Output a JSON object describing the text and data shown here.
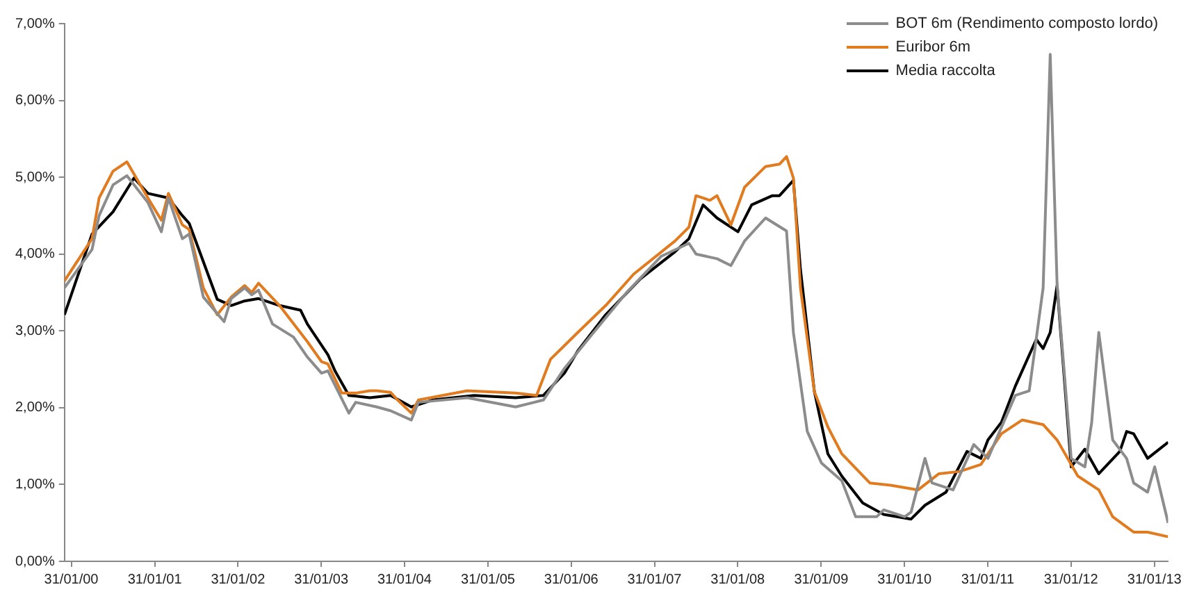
{
  "chart_data": {
    "type": "line",
    "legend": "top right",
    "grid": false,
    "marker": "none",
    "line_style": "solid",
    "xlim": [
      "2000-01",
      "2013-04"
    ],
    "xticks": [
      {
        "value": "2000-01-31",
        "label": "31/01/00"
      },
      {
        "value": "2001-01-31",
        "label": "31/01/01"
      },
      {
        "value": "2002-01-31",
        "label": "31/01/02"
      },
      {
        "value": "2003-01-31",
        "label": "31/01/03"
      },
      {
        "value": "2004-01-31",
        "label": "31/01/04"
      },
      {
        "value": "2005-01-31",
        "label": "31/01/05"
      },
      {
        "value": "2006-01-31",
        "label": "31/01/06"
      },
      {
        "value": "2007-01-31",
        "label": "31/01/07"
      },
      {
        "value": "2008-01-31",
        "label": "31/01/08"
      },
      {
        "value": "2009-01-31",
        "label": "31/01/09"
      },
      {
        "value": "2010-01-31",
        "label": "31/01/10"
      },
      {
        "value": "2011-01-31",
        "label": "31/01/11"
      },
      {
        "value": "2012-01-31",
        "label": "31/01/12"
      },
      {
        "value": "2013-01-31",
        "label": "31/01/13"
      }
    ],
    "ylim": [
      0,
      7
    ],
    "yticks": [
      {
        "value": 0,
        "label": "0,00%"
      },
      {
        "value": 1,
        "label": "1,00%"
      },
      {
        "value": 2,
        "label": "2,00%"
      },
      {
        "value": 3,
        "label": "3,00%"
      },
      {
        "value": 4,
        "label": "4,00%"
      },
      {
        "value": 5,
        "label": "5,00%"
      },
      {
        "value": 6,
        "label": "6,00%"
      },
      {
        "value": 7,
        "label": "7,00%"
      }
    ],
    "series": [
      {
        "name": "BOT 6m (Rendimento composto lordo)",
        "color": "#8c8c8c",
        "x": [
          "2000-01",
          "2000-05",
          "2000-06",
          "2000-08",
          "2000-10",
          "2001-01",
          "2001-03",
          "2001-04",
          "2001-06",
          "2001-07",
          "2001-09",
          "2001-12",
          "2002-01",
          "2002-03",
          "2002-04",
          "2002-05",
          "2002-07",
          "2002-10",
          "2002-12",
          "2003-02",
          "2003-03",
          "2003-06",
          "2003-07",
          "2003-10",
          "2003-12",
          "2004-03",
          "2004-04",
          "2004-11",
          "2005-06",
          "2005-10",
          "2006-01",
          "2006-05",
          "2006-10",
          "2007-03",
          "2007-07",
          "2007-08",
          "2007-11",
          "2008-01",
          "2008-03",
          "2008-06",
          "2008-09",
          "2008-10",
          "2008-12",
          "2009-02",
          "2009-05",
          "2009-07",
          "2009-10",
          "2009-11",
          "2010-02",
          "2010-03",
          "2010-05",
          "2010-06",
          "2010-09",
          "2010-12",
          "2011-02",
          "2011-06",
          "2011-08",
          "2011-10",
          "2011-11",
          "2011-12",
          "2012-02",
          "2012-04",
          "2012-05",
          "2012-06",
          "2012-08",
          "2012-10",
          "2012-11",
          "2013-01",
          "2013-02",
          "2013-04"
        ],
        "values": [
          3.56,
          4.06,
          4.5,
          4.9,
          5.02,
          4.67,
          4.29,
          4.73,
          4.2,
          4.26,
          3.44,
          3.12,
          3.42,
          3.56,
          3.47,
          3.53,
          3.09,
          2.92,
          2.66,
          2.45,
          2.48,
          1.93,
          2.07,
          2.01,
          1.96,
          1.84,
          2.07,
          2.13,
          2.01,
          2.1,
          2.51,
          2.95,
          3.5,
          3.97,
          4.14,
          4.0,
          3.94,
          3.85,
          4.17,
          4.47,
          4.3,
          2.98,
          1.69,
          1.28,
          1.05,
          0.58,
          0.58,
          0.67,
          0.58,
          0.64,
          1.34,
          1.02,
          0.93,
          1.52,
          1.34,
          2.16,
          2.22,
          3.56,
          6.6,
          3.62,
          1.34,
          1.23,
          1.81,
          2.98,
          1.58,
          1.34,
          1.02,
          0.9,
          1.23,
          0.5
        ]
      },
      {
        "name": "Euribor 6m",
        "color": "#e07b20",
        "x": [
          "2000-01",
          "2000-05",
          "2000-06",
          "2000-08",
          "2000-10",
          "2001-01",
          "2001-03",
          "2001-04",
          "2001-06",
          "2001-07",
          "2001-09",
          "2001-11",
          "2002-01",
          "2002-03",
          "2002-04",
          "2002-05",
          "2002-08",
          "2002-12",
          "2003-02",
          "2003-03",
          "2003-05",
          "2003-07",
          "2003-09",
          "2003-10",
          "2003-12",
          "2004-01",
          "2004-03",
          "2004-04",
          "2004-11",
          "2005-06",
          "2005-09",
          "2005-11",
          "2006-03",
          "2006-07",
          "2006-11",
          "2007-05",
          "2007-07",
          "2007-08",
          "2007-10",
          "2007-11",
          "2008-01",
          "2008-03",
          "2008-06",
          "2008-08",
          "2008-09",
          "2008-10",
          "2008-11",
          "2009-01",
          "2009-03",
          "2009-05",
          "2009-09",
          "2009-12",
          "2010-04",
          "2010-07",
          "2010-10",
          "2011-01",
          "2011-04",
          "2011-07",
          "2011-10",
          "2011-12",
          "2012-03",
          "2012-06",
          "2012-08",
          "2012-11",
          "2013-01",
          "2013-04"
        ],
        "values": [
          3.65,
          4.2,
          4.73,
          5.08,
          5.2,
          4.73,
          4.44,
          4.79,
          4.38,
          4.32,
          3.56,
          3.21,
          3.44,
          3.59,
          3.5,
          3.62,
          3.33,
          2.86,
          2.6,
          2.57,
          2.19,
          2.19,
          2.22,
          2.22,
          2.2,
          2.1,
          1.93,
          2.1,
          2.22,
          2.19,
          2.16,
          2.63,
          2.98,
          3.33,
          3.74,
          4.17,
          4.35,
          4.76,
          4.7,
          4.76,
          4.38,
          4.87,
          5.14,
          5.17,
          5.27,
          4.99,
          3.56,
          2.21,
          1.75,
          1.4,
          1.02,
          0.99,
          0.93,
          1.14,
          1.17,
          1.26,
          1.66,
          1.84,
          1.78,
          1.58,
          1.11,
          0.93,
          0.58,
          0.38,
          0.38,
          0.32
        ]
      },
      {
        "name": "Media raccolta",
        "color": "#000000",
        "x": [
          "2000-01",
          "2000-05",
          "2000-08",
          "2000-11",
          "2001-01",
          "2001-04",
          "2001-06",
          "2001-07",
          "2001-11",
          "2002-01",
          "2002-03",
          "2002-05",
          "2002-08",
          "2002-11",
          "2002-12",
          "2003-03",
          "2003-04",
          "2003-06",
          "2003-09",
          "2003-12",
          "2004-03",
          "2004-06",
          "2004-12",
          "2005-06",
          "2005-10",
          "2006-01",
          "2006-03",
          "2006-07",
          "2006-12",
          "2007-05",
          "2007-07",
          "2007-09",
          "2007-11",
          "2008-02",
          "2008-04",
          "2008-07",
          "2008-08",
          "2008-10",
          "2008-11",
          "2009-01",
          "2009-03",
          "2009-05",
          "2009-08",
          "2009-11",
          "2010-03",
          "2010-05",
          "2010-08",
          "2010-11",
          "2011-01",
          "2011-02",
          "2011-04",
          "2011-06",
          "2011-09",
          "2011-10",
          "2011-11",
          "2011-12",
          "2012-02",
          "2012-04",
          "2012-06",
          "2012-09",
          "2012-10",
          "2012-11",
          "2013-01",
          "2013-04"
        ],
        "values": [
          3.21,
          4.26,
          4.55,
          4.99,
          4.79,
          4.73,
          4.5,
          4.4,
          3.41,
          3.33,
          3.39,
          3.42,
          3.33,
          3.27,
          3.09,
          2.69,
          2.48,
          2.16,
          2.13,
          2.16,
          2.01,
          2.1,
          2.16,
          2.13,
          2.16,
          2.45,
          2.74,
          3.21,
          3.68,
          4.03,
          4.2,
          4.64,
          4.47,
          4.29,
          4.64,
          4.76,
          4.76,
          4.96,
          3.8,
          2.21,
          1.4,
          1.11,
          0.76,
          0.61,
          0.55,
          0.73,
          0.9,
          1.43,
          1.34,
          1.58,
          1.81,
          2.28,
          2.89,
          2.77,
          2.98,
          3.59,
          1.23,
          1.46,
          1.14,
          1.43,
          1.69,
          1.66,
          1.34,
          1.55
        ]
      }
    ]
  }
}
